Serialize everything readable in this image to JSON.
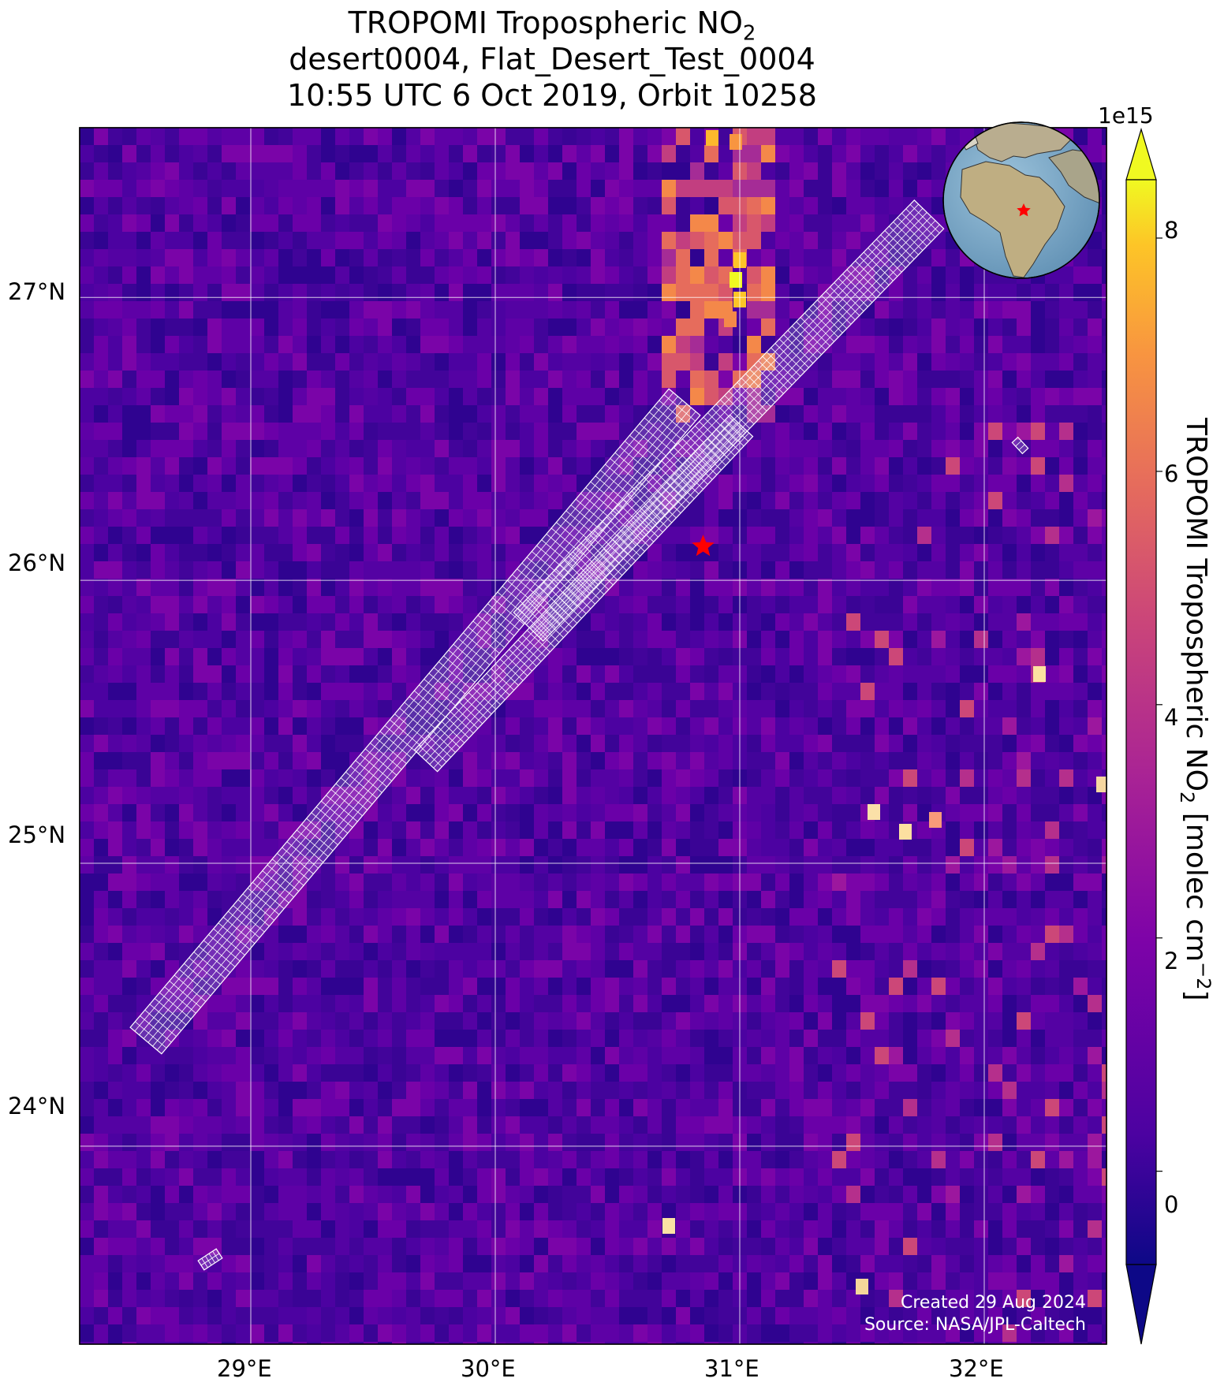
{
  "title": {
    "line1_prefix": "TROPOMI Tropospheric NO",
    "line1_sub": "2",
    "line2": "desert0004, Flat_Desert_Test_0004",
    "line3": "10:55 UTC 6 Oct 2019, Orbit 10258"
  },
  "map": {
    "lon_range": [
      28.3,
      32.5
    ],
    "lat_range": [
      23.3,
      27.6
    ],
    "lon_ticks": [
      {
        "value": 29,
        "label": "29°E"
      },
      {
        "value": 30,
        "label": "30°E"
      },
      {
        "value": 31,
        "label": "31°E"
      },
      {
        "value": 32,
        "label": "32°E"
      }
    ],
    "lat_ticks": [
      {
        "value": 27,
        "label": "27°N"
      },
      {
        "value": 26,
        "label": "26°N"
      },
      {
        "value": 25,
        "label": "25°N"
      },
      {
        "value": 24,
        "label": "24°N"
      }
    ],
    "grid": true,
    "target_marker": {
      "lon": 30.85,
      "lat": 26.12,
      "symbol": "star",
      "color": "#ff0000"
    },
    "field": "TROPOMI tropospheric NO2 pixels (plasma colormap)"
  },
  "colorbar": {
    "label_prefix": "TROPOMI Tropospheric NO",
    "label_sub": "2",
    "label_mid": " [molec cm",
    "label_sup": "−2",
    "label_suffix": "]",
    "exponent": "1e15",
    "range": [
      -0.8,
      8.5
    ],
    "ticks": [
      "0",
      "2",
      "4",
      "6",
      "8"
    ],
    "extend": "both",
    "colormap": "plasma"
  },
  "inset_globe": {
    "marker_color": "#ff0000",
    "region": "Africa / Europe / Middle East"
  },
  "credits": {
    "created": "Created 29 Aug 2024",
    "source": "Source: NASA/JPL-Caltech"
  },
  "colors": {
    "background_low": "#3b0594",
    "grid": "#ffffff",
    "footprint": "#ffffff",
    "marker": "#ff0000"
  }
}
